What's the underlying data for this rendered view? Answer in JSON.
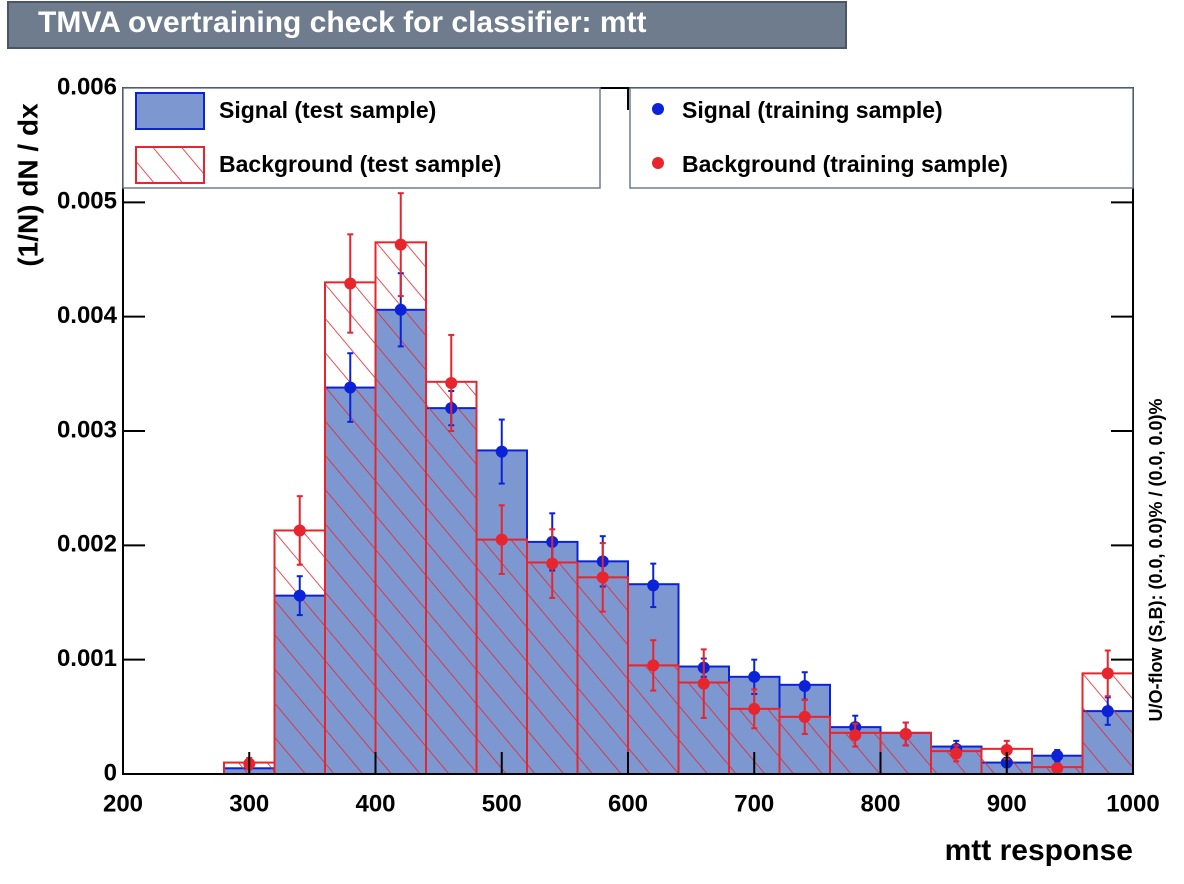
{
  "chart_data": {
    "type": "histogram",
    "title": "TMVA overtraining check for classifier: mtt",
    "x_label": "mtt response",
    "y_label": "(1/N) dN / dx",
    "side_note": "U/O-flow (S,B): (0.0, 0.0)% / (0.0, 0.0)%",
    "bins": [
      200,
      240,
      280,
      320,
      360,
      400,
      440,
      480,
      520,
      560,
      600,
      640,
      680,
      720,
      760,
      800,
      840,
      880,
      920,
      960,
      1000
    ],
    "xlim": [
      200,
      1000
    ],
    "xticks": [
      200,
      300,
      400,
      500,
      600,
      700,
      800,
      900,
      1000
    ],
    "ylim": [
      0,
      0.006
    ],
    "yticks": [
      0,
      0.001,
      0.002,
      0.003,
      0.004,
      0.005,
      0.006
    ],
    "series": [
      {
        "name": "Signal (test sample)",
        "style": "filled",
        "color": "#0b22d8",
        "fill": "#7d97d0",
        "values": [
          0,
          0,
          5e-05,
          0.00156,
          0.00338,
          0.00406,
          0.0032,
          0.00283,
          0.00203,
          0.00186,
          0.00166,
          0.00094,
          0.00085,
          0.00078,
          0.00041,
          0.00036,
          0.00024,
          0.0001,
          0.00016,
          0.00055
        ]
      },
      {
        "name": "Background (test sample)",
        "style": "hatched",
        "color": "#e8242c",
        "values": [
          0,
          0,
          0.0001,
          0.00213,
          0.0043,
          0.00465,
          0.00343,
          0.00205,
          0.00185,
          0.00172,
          0.00095,
          0.0008,
          0.00057,
          0.0005,
          0.00036,
          0.00036,
          0.0002,
          0.00022,
          6e-05,
          0.00088
        ]
      },
      {
        "name": "Signal (training sample)",
        "style": "points",
        "color": "#0b22d8",
        "values": [
          null,
          null,
          null,
          0.00156,
          0.00338,
          0.00406,
          0.0032,
          0.00282,
          0.00203,
          0.00186,
          0.00165,
          0.00093,
          0.00085,
          0.00077,
          0.00041,
          0.00035,
          0.00022,
          0.0001,
          0.00016,
          0.00055
        ],
        "errors": [
          null,
          null,
          null,
          0.00017,
          0.0003,
          0.00032,
          0.00015,
          0.00028,
          0.00025,
          0.00022,
          0.00019,
          8e-05,
          0.00015,
          0.00012,
          0.0001,
          0.0001,
          7e-05,
          4e-05,
          5e-05,
          0.00012
        ]
      },
      {
        "name": "Background (training sample)",
        "style": "points",
        "color": "#e8242c",
        "values": [
          null,
          null,
          9e-05,
          0.00213,
          0.00429,
          0.00463,
          0.00342,
          0.00205,
          0.00184,
          0.00172,
          0.00095,
          0.00079,
          0.00057,
          0.0005,
          0.00034,
          0.00035,
          0.00018,
          0.00021,
          5e-05,
          0.00088
        ],
        "errors": [
          null,
          null,
          5e-05,
          0.0003,
          0.00043,
          0.00045,
          0.00042,
          0.0003,
          0.0003,
          0.0003,
          0.00022,
          0.0003,
          0.00017,
          0.00015,
          0.0001,
          0.0001,
          7e-05,
          8e-05,
          4e-05,
          0.0002
        ]
      }
    ]
  }
}
